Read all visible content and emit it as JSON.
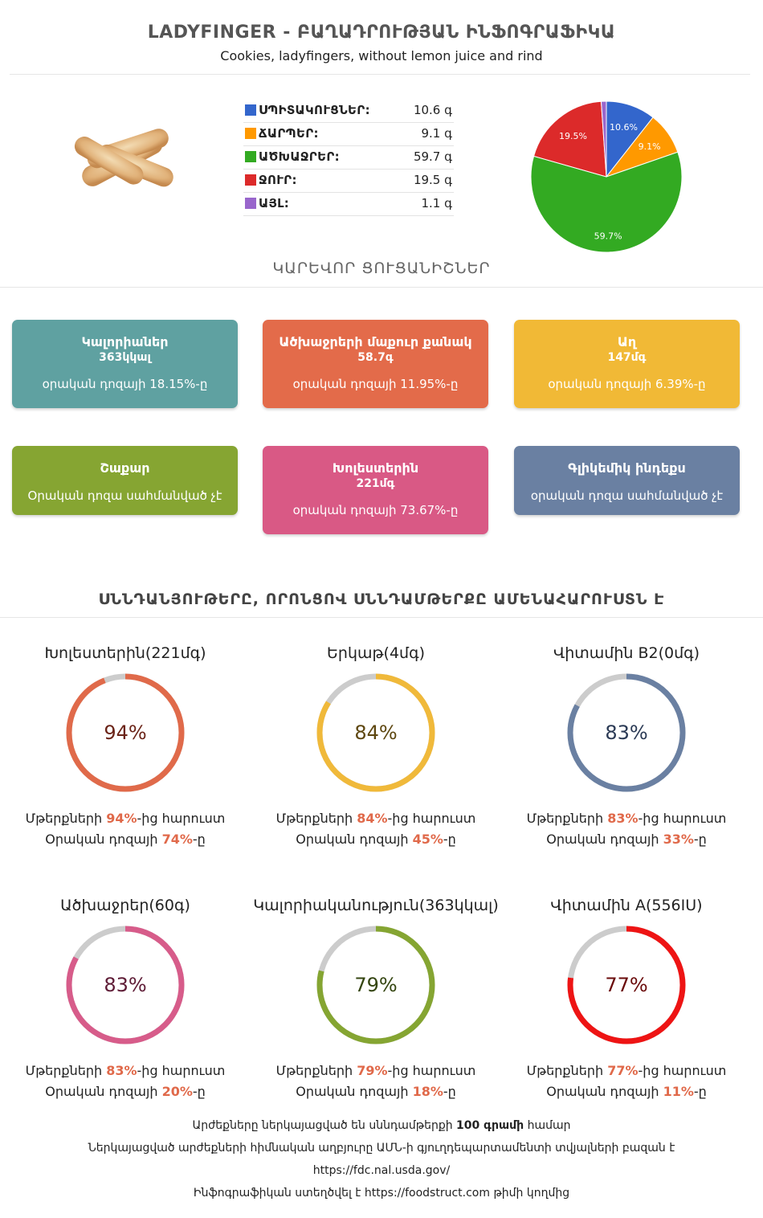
{
  "header": {
    "title": "LADYFINGER - ԲԱՂԱԴՐՈՒԹՅԱՆ ԻՆՖՈԳՐԱՖԻԿԱ",
    "subtitle": "Cookies, ladyfingers, without lemon juice and rind"
  },
  "chart_data": [
    {
      "type": "pie",
      "categories": [
        "ՍՊԻՏԱԿՈՒՑՆԵՐ:",
        "ՃԱՐՊԵՐ:",
        "ԱԾԽԱՋՐԵՐ:",
        "ՋՈՒՐ:",
        "ԱՅԼ:"
      ],
      "values": [
        10.6,
        9.1,
        59.7,
        19.5,
        1.1
      ],
      "value_labels": [
        "10.6 գ",
        "9.1 գ",
        "59.7 գ",
        "19.5 գ",
        "1.1 գ"
      ],
      "slice_labels": [
        "10.6%",
        "9.1%",
        "59.7%",
        "19.5%",
        ""
      ],
      "colors": [
        "#3366cc",
        "#ff9900",
        "#33aa22",
        "#dc2a2a",
        "#9966cc"
      ],
      "legend": "table-left"
    },
    {
      "type": "donut-set",
      "items": [
        {
          "title": "Խոլեստերին(221մգ)",
          "percent": 94,
          "label": "94%",
          "color": "#e06a4a",
          "text_color": "#6b2418",
          "l1_pre": "Մթերքների ",
          "l1_val": "94%",
          "l1_post": "-ից հարուստ",
          "l2_pre": "Օրական դոզայի ",
          "l2_val": "74%",
          "l2_post": "-ը"
        },
        {
          "title": "Երկաթ(4մգ)",
          "percent": 84,
          "label": "84%",
          "color": "#f0b93a",
          "text_color": "#5e4710",
          "l1_pre": "Մթերքների ",
          "l1_val": "84%",
          "l1_post": "-ից հարուստ",
          "l2_pre": "Օրական դոզայի ",
          "l2_val": "45%",
          "l2_post": "-ը"
        },
        {
          "title": "Վիտամին B2(0մգ)",
          "percent": 83,
          "label": "83%",
          "color": "#6a80a2",
          "text_color": "#2b3a55",
          "l1_pre": "Մթերքների ",
          "l1_val": "83%",
          "l1_post": "-ից հարուստ",
          "l2_pre": "Օրական դոզայի ",
          "l2_val": "33%",
          "l2_post": "-ը"
        },
        {
          "title": "Ածխաջրեր(60գ)",
          "percent": 83,
          "label": "83%",
          "color": "#d75c8a",
          "text_color": "#5e1c36",
          "l1_pre": "Մթերքների ",
          "l1_val": "83%",
          "l1_post": "-ից հարուստ",
          "l2_pre": "Օրական դոզայի ",
          "l2_val": "20%",
          "l2_post": "-ը"
        },
        {
          "title": "Կալորիականություն(363կկալ)",
          "percent": 79,
          "label": "79%",
          "color": "#85a532",
          "text_color": "#344510",
          "l1_pre": "Մթերքների ",
          "l1_val": "79%",
          "l1_post": "-ից հարուստ",
          "l2_pre": "Օրական դոզայի ",
          "l2_val": "18%",
          "l2_post": "-ը"
        },
        {
          "title": "Վիտամին A(556IU)",
          "percent": 77,
          "label": "77%",
          "color": "#ee1414",
          "text_color": "#6a0b0b",
          "l1_pre": "Մթերքների ",
          "l1_val": "77%",
          "l1_post": "-ից հարուստ",
          "l2_pre": "Օրական դոզայի ",
          "l2_val": "11%",
          "l2_post": "-ը"
        }
      ]
    }
  ],
  "key_heading": "ԿԱՐԵՎՈՐ ՑՈՒՑԱՆԻՇՆԵՐ",
  "cards": [
    {
      "name": "Կալորիաներ",
      "value": "363կկալ",
      "note": "օրական դոզայի 18.15%-ը",
      "color": "#5fa1a1"
    },
    {
      "name": "Ածխաջրերի մաքուր քանակ",
      "value": "58.7գ",
      "note": "օրական դոզայի 11.95%-ը",
      "color": "#e36b4a"
    },
    {
      "name": "Աղ",
      "value": "147մգ",
      "note": "օրական դոզայի 6.39%-ը",
      "color": "#f1b936"
    },
    {
      "name": "Շաքար",
      "value": "",
      "note": "Օրական դոզա սահմանված չէ",
      "color": "#86a532"
    },
    {
      "name": "Խոլեստերին",
      "value": "221մգ",
      "note": "օրական դոզայի 73.67%-ը",
      "color": "#d95985"
    },
    {
      "name": "Գլիկեմիկ ինդեքս",
      "value": "",
      "note": "օրական դոզա սահմանված չէ",
      "color": "#6a80a2"
    }
  ],
  "rich_heading": "ՍՆՆԴԱՆՅՈՒԹԵՐԸ, ՈՐՈՆՑՈՎ ՍՆՆԴԱՄԹԵՐՔԸ ԱՄԵՆԱՀԱՐՈՒՍՏՆ Է",
  "footer": {
    "l1_pre": "Արժեքները ներկայացված են սննդամթերքի ",
    "l1_bold": "100 գրամի",
    "l1_post": " համար",
    "l2": "Ներկայացված արժեքների հիմնական աղբյուրը ԱՄՆ-ի գյուղդեպարտամենտի տվյալների բազան է",
    "l3": "https://fdc.nal.usda.gov/",
    "l4_pre": "Ինֆոգրաֆիկան ստեղծվել է ",
    "l4_link": "https://foodstruct.com",
    "l4_post": " թիմի կողմից"
  }
}
